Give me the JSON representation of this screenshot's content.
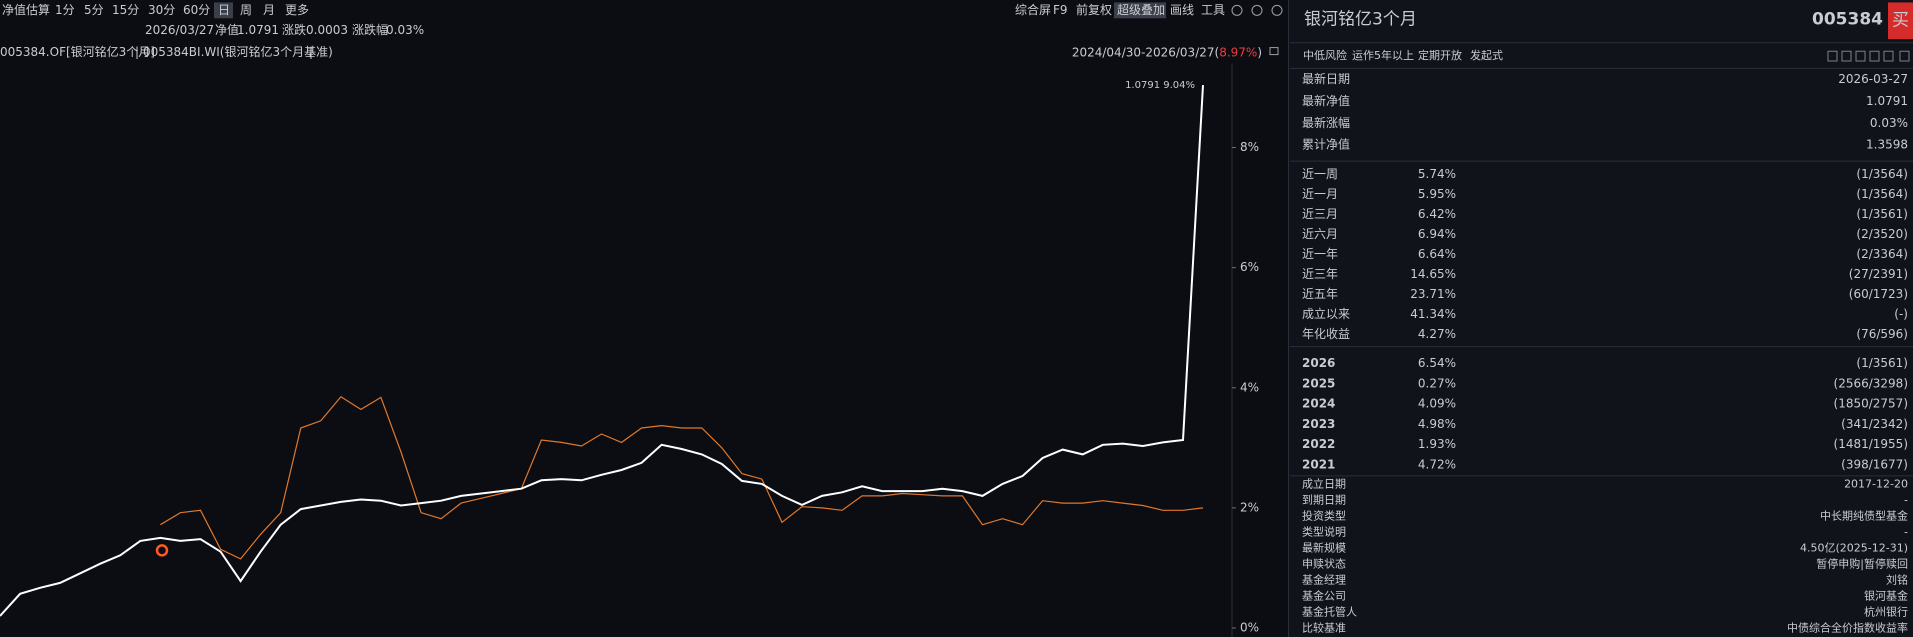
{
  "toolbar": {
    "periods": [
      "净值估算",
      "1分",
      "5分",
      "15分",
      "30分",
      "60分",
      "日",
      "周",
      "月",
      "更多"
    ],
    "tools": [
      "综合屏",
      "F9",
      "前复权",
      "超级叠加",
      "画线",
      "工具"
    ]
  },
  "quote": {
    "date": "2026/03/27",
    "nav_label": "净值",
    "nav": "1.0791",
    "change_label": "涨跌",
    "change": "0.0003",
    "pct_label": "涨跌幅",
    "pct": "0.03%"
  },
  "range": {
    "text": "2024/04/30-2026/03/27(",
    "return": "8.97%",
    "close": ")"
  },
  "chart_data": {
    "type": "line",
    "legend_separator": "|",
    "end_label": "1.0791 9.04%",
    "series": [
      {
        "name": "005384.OF[银河铭亿3个月]",
        "color": "#ffffff",
        "values": [
          0.2,
          0.57,
          0.67,
          0.75,
          0.91,
          1.07,
          1.21,
          1.45,
          1.5,
          1.45,
          1.48,
          1.27,
          0.78,
          1.27,
          1.72,
          1.98,
          2.04,
          2.1,
          2.14,
          2.12,
          2.04,
          2.08,
          2.12,
          2.2,
          2.24,
          2.28,
          2.32,
          2.46,
          2.48,
          2.46,
          2.55,
          2.63,
          2.75,
          3.05,
          2.98,
          2.89,
          2.73,
          2.45,
          2.4,
          2.2,
          2.05,
          2.2,
          2.26,
          2.36,
          2.28,
          2.28,
          2.28,
          2.32,
          2.28,
          2.2,
          2.4,
          2.53,
          2.83,
          2.97,
          2.89,
          3.05,
          3.07,
          3.03,
          3.09,
          3.13,
          9.04
        ]
      },
      {
        "name": "005384BI.WI(银河铭亿3个月基准)",
        "color": "#e0782c",
        "values": [
          null,
          null,
          null,
          null,
          null,
          null,
          null,
          null,
          1.72,
          1.92,
          1.96,
          1.31,
          1.15,
          1.56,
          1.92,
          3.33,
          3.45,
          3.85,
          3.64,
          3.84,
          2.93,
          1.92,
          1.82,
          2.08,
          2.16,
          2.24,
          2.32,
          3.13,
          3.09,
          3.03,
          3.23,
          3.09,
          3.33,
          3.37,
          3.33,
          3.33,
          3.0,
          2.57,
          2.48,
          1.76,
          2.02,
          2.0,
          1.96,
          2.2,
          2.2,
          2.24,
          2.22,
          2.2,
          2.2,
          1.72,
          1.82,
          1.72,
          2.12,
          2.08,
          2.08,
          2.12,
          2.08,
          2.04,
          1.96,
          1.96,
          2.0
        ]
      }
    ],
    "ylim": [
      -0.15,
      9.4
    ],
    "yticks": [
      {
        "value": 0,
        "label": "0%"
      },
      {
        "value": 2,
        "label": "2%"
      },
      {
        "value": 4,
        "label": "4%"
      },
      {
        "value": 6,
        "label": "6%"
      },
      {
        "value": 8,
        "label": "8%"
      }
    ]
  },
  "panel": {
    "name": "银河铭亿3个月",
    "code": "005384",
    "buy": "买",
    "tags": [
      "中低风险",
      "运作5年以上",
      "定期开放",
      "发起式"
    ],
    "summary": [
      [
        "最新日期",
        "2026-03-27"
      ],
      [
        "最新净值",
        "1.0791"
      ],
      [
        "最新涨幅",
        "0.03%"
      ],
      [
        "累计净值",
        "1.3598"
      ]
    ],
    "performance": [
      [
        "近一周",
        "5.74%",
        "(1/3564)"
      ],
      [
        "近一月",
        "5.95%",
        "(1/3564)"
      ],
      [
        "近三月",
        "6.42%",
        "(1/3561)"
      ],
      [
        "近六月",
        "6.94%",
        "(2/3520)"
      ],
      [
        "近一年",
        "6.64%",
        "(2/3364)"
      ],
      [
        "近三年",
        "14.65%",
        "(27/2391)"
      ],
      [
        "近五年",
        "23.71%",
        "(60/1723)"
      ],
      [
        "成立以来",
        "41.34%",
        "(-)"
      ],
      [
        "年化收益",
        "4.27%",
        "(76/596)"
      ]
    ],
    "years": [
      [
        "2026",
        "6.54%",
        "(1/3561)"
      ],
      [
        "2025",
        "0.27%",
        "(2566/3298)"
      ],
      [
        "2024",
        "4.09%",
        "(1850/2757)"
      ],
      [
        "2023",
        "4.98%",
        "(341/2342)"
      ],
      [
        "2022",
        "1.93%",
        "(1481/1955)"
      ],
      [
        "2021",
        "4.72%",
        "(398/1677)"
      ]
    ],
    "info": [
      [
        "成立日期",
        "2017-12-20"
      ],
      [
        "到期日期",
        "-"
      ],
      [
        "投资类型",
        "中长期纯债型基金"
      ],
      [
        "类型说明",
        "-"
      ],
      [
        "最新规模",
        "4.50亿(2025-12-31)"
      ],
      [
        "申赎状态",
        "暂停申购|暂停赎回"
      ],
      [
        "基金经理",
        "刘铭"
      ],
      [
        "基金公司",
        "银河基金"
      ],
      [
        "基金托管人",
        "杭州银行"
      ],
      [
        "比较基准",
        "中债综合全价指数收益率"
      ]
    ]
  }
}
